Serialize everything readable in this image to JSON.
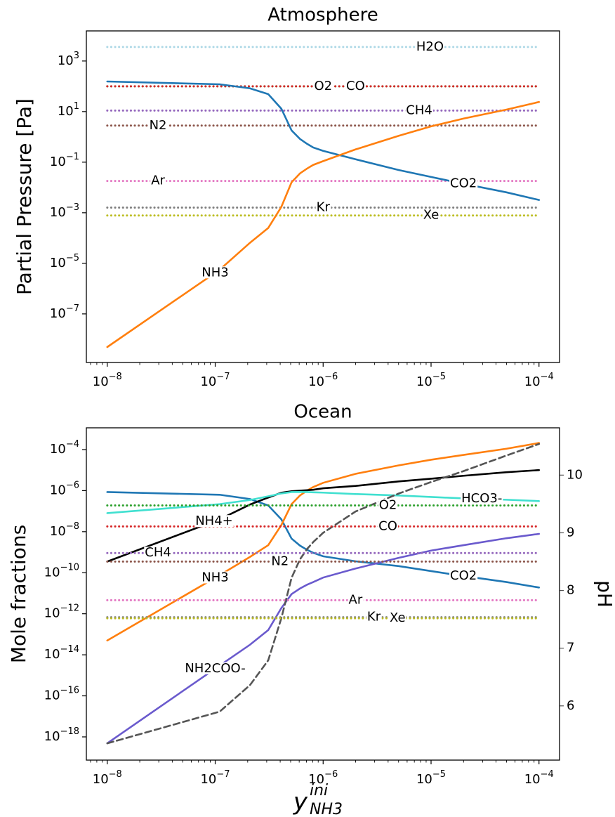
{
  "chart_data": [
    {
      "type": "line",
      "title": "Atmosphere",
      "ylabel": "Partial Pressure [Pa]",
      "xscale": "log",
      "yscale": "log",
      "x": [
        1e-08,
        1.1e-07,
        2.1e-07,
        3.1e-07,
        4.1e-07,
        5.1e-07,
        6.1e-07,
        7.1e-07,
        8.1e-07,
        1e-06,
        2e-06,
        5e-06,
        1e-05,
        2e-05,
        5e-05,
        0.0001
      ],
      "xlim": [
        6.4e-09,
        0.000155
      ],
      "ylim": [
        1.2e-09,
        15500.0
      ],
      "xticks": [
        {
          "value": 1e-08,
          "label": {
            "base": "10",
            "exp": "−8"
          }
        },
        {
          "value": 1e-07,
          "label": {
            "base": "10",
            "exp": "−7"
          }
        },
        {
          "value": 1e-06,
          "label": {
            "base": "10",
            "exp": "−6"
          }
        },
        {
          "value": 1e-05,
          "label": {
            "base": "10",
            "exp": "−5"
          }
        },
        {
          "value": 0.0001,
          "label": {
            "base": "10",
            "exp": "−4"
          }
        }
      ],
      "xminorticks": [
        7e-09,
        8e-09,
        9e-09,
        2e-08,
        3e-08,
        4e-08,
        5e-08,
        6e-08,
        7e-08,
        8e-08,
        9e-08,
        2e-07,
        3e-07,
        4e-07,
        5e-07,
        6e-07,
        7e-07,
        8e-07,
        9e-07,
        2e-06,
        3e-06,
        4e-06,
        5e-06,
        6e-06,
        7e-06,
        8e-06,
        9e-06,
        2e-05,
        3e-05,
        4e-05,
        5e-05,
        6e-05,
        7e-05,
        8e-05,
        9e-05
      ],
      "yticks": [
        {
          "value": 1000,
          "label": {
            "base": "10",
            "exp": "3"
          }
        },
        {
          "value": 10,
          "label": {
            "base": "10",
            "exp": "1"
          }
        },
        {
          "value": 0.1,
          "label": {
            "base": "10",
            "exp": "−1"
          }
        },
        {
          "value": 0.001,
          "label": {
            "base": "10",
            "exp": "−3"
          }
        },
        {
          "value": 1e-05,
          "label": {
            "base": "10",
            "exp": "−5"
          }
        },
        {
          "value": 1e-07,
          "label": {
            "base": "10",
            "exp": "−7"
          }
        }
      ],
      "series": [
        {
          "name": "H2O",
          "color": "#add8e6",
          "linestyle": "dotted",
          "x": [
            1e-08,
            0.0001
          ],
          "values": [
            3600,
            3600
          ]
        },
        {
          "name": "O2",
          "color": "#2ca02c",
          "linestyle": "dotted",
          "x": [
            1e-08,
            0.0001
          ],
          "values": [
            100,
            100
          ]
        },
        {
          "name": "CO",
          "color": "#d62728",
          "linestyle": "dotted",
          "x": [
            1e-08,
            0.0001
          ],
          "values": [
            100,
            100
          ]
        },
        {
          "name": "CH4",
          "color": "#9467bd",
          "linestyle": "dotted",
          "x": [
            1e-08,
            0.0001
          ],
          "values": [
            11,
            11
          ]
        },
        {
          "name": "N2",
          "color": "#8c564b",
          "linestyle": "dotted",
          "x": [
            1e-08,
            0.0001
          ],
          "values": [
            2.8,
            2.8
          ]
        },
        {
          "name": "Ar",
          "color": "#e377c2",
          "linestyle": "dotted",
          "x": [
            1e-08,
            0.0001
          ],
          "values": [
            0.018,
            0.018
          ]
        },
        {
          "name": "Kr",
          "color": "#7f7f7f",
          "linestyle": "dotted",
          "x": [
            1e-08,
            0.0001
          ],
          "values": [
            0.0016,
            0.0016
          ]
        },
        {
          "name": "Xe",
          "color": "#bcbd22",
          "linestyle": "dotted",
          "x": [
            1e-08,
            0.0001
          ],
          "values": [
            0.00078,
            0.00078
          ]
        },
        {
          "name": "CO2",
          "color": "#1f77b4",
          "linestyle": "solid",
          "values": [
            155,
            120,
            83,
            49,
            13,
            1.8,
            0.83,
            0.53,
            0.38,
            0.28,
            0.13,
            0.049,
            0.026,
            0.014,
            0.0064,
            0.0032
          ]
        },
        {
          "name": "NH3",
          "color": "#ff7f0e",
          "linestyle": "solid",
          "values": [
            4.9e-09,
            5.6e-06,
            6.5e-05,
            0.00025,
            0.0017,
            0.016,
            0.036,
            0.056,
            0.078,
            0.11,
            0.32,
            1.1,
            2.6,
            5.3,
            12,
            24
          ]
        }
      ]
    },
    {
      "type": "line",
      "title": "Ocean",
      "ylabel": "Mole fractions",
      "y2label": "pH",
      "xscale": "log",
      "yscale": "log",
      "xlabel": {
        "base": "y",
        "sup": "ini",
        "sub": "NH3"
      },
      "x": [
        1e-08,
        1.1e-07,
        2.1e-07,
        3.1e-07,
        4.1e-07,
        5.1e-07,
        6.1e-07,
        7.1e-07,
        8.1e-07,
        1e-06,
        2e-06,
        5e-06,
        1e-05,
        2e-05,
        5e-05,
        0.0001
      ],
      "xlim": [
        6.4e-09,
        0.000155
      ],
      "ylim": [
        7.4e-20,
        0.00115
      ],
      "y2lim": [
        5.06,
        10.82
      ],
      "xticks": [
        {
          "value": 1e-08,
          "label": {
            "base": "10",
            "exp": "−8"
          }
        },
        {
          "value": 1e-07,
          "label": {
            "base": "10",
            "exp": "−7"
          }
        },
        {
          "value": 1e-06,
          "label": {
            "base": "10",
            "exp": "−6"
          }
        },
        {
          "value": 1e-05,
          "label": {
            "base": "10",
            "exp": "−5"
          }
        },
        {
          "value": 0.0001,
          "label": {
            "base": "10",
            "exp": "−4"
          }
        }
      ],
      "xminorticks": [
        7e-09,
        8e-09,
        9e-09,
        2e-08,
        3e-08,
        4e-08,
        5e-08,
        6e-08,
        7e-08,
        8e-08,
        9e-08,
        2e-07,
        3e-07,
        4e-07,
        5e-07,
        6e-07,
        7e-07,
        8e-07,
        9e-07,
        2e-06,
        3e-06,
        4e-06,
        5e-06,
        6e-06,
        7e-06,
        8e-06,
        9e-06,
        2e-05,
        3e-05,
        4e-05,
        5e-05,
        6e-05,
        7e-05,
        8e-05,
        9e-05
      ],
      "yticks": [
        {
          "value": 0.0001,
          "label": {
            "base": "10",
            "exp": "−4"
          }
        },
        {
          "value": 1e-06,
          "label": {
            "base": "10",
            "exp": "−6"
          }
        },
        {
          "value": 1e-08,
          "label": {
            "base": "10",
            "exp": "−8"
          }
        },
        {
          "value": 1e-10,
          "label": {
            "base": "10",
            "exp": "−10"
          }
        },
        {
          "value": 1e-12,
          "label": {
            "base": "10",
            "exp": "−12"
          }
        },
        {
          "value": 1e-14,
          "label": {
            "base": "10",
            "exp": "−14"
          }
        },
        {
          "value": 1e-16,
          "label": {
            "base": "10",
            "exp": "−16"
          }
        },
        {
          "value": 1e-18,
          "label": {
            "base": "10",
            "exp": "−18"
          }
        }
      ],
      "y2ticks": [
        6,
        7,
        8,
        9,
        10
      ],
      "series": [
        {
          "name": "CO2",
          "color": "#1f77b4",
          "linestyle": "solid",
          "values": [
            8.5e-07,
            6.3e-07,
            3.9e-07,
            1.9e-07,
            4e-08,
            4.6e-09,
            2.1e-09,
            1.3e-09,
            9.3e-10,
            6.3e-10,
            3.6e-10,
            2.1e-10,
            1.2e-10,
            6.9e-11,
            3.5e-11,
            1.9e-11
          ]
        },
        {
          "name": "NH3",
          "color": "#ff7f0e",
          "linestyle": "solid",
          "values": [
            5e-14,
            7.6e-11,
            5.9e-10,
            2.2e-09,
            2.1e-08,
            2.2e-07,
            5.8e-07,
            1e-06,
            1.5e-06,
            2.4e-06,
            6.6e-06,
            1.7e-05,
            3.2e-05,
            5.5e-05,
            0.00011,
            0.00021
          ]
        },
        {
          "name": "NH4+",
          "color": "#000000",
          "linestyle": "solid",
          "values": [
            3.5e-10,
            4e-08,
            2.1e-07,
            4.6e-07,
            7.9e-07,
            9.3e-07,
            1e-06,
            1.05e-06,
            1.1e-06,
            1.3e-06,
            1.7e-06,
            2.8e-06,
            3.8e-06,
            5.3e-06,
            7.9e-06,
            1e-05
          ]
        },
        {
          "name": "HCO3-",
          "color": "#40e0d0",
          "linestyle": "solid",
          "values": [
            8e-08,
            2.2e-07,
            3.5e-07,
            5.3e-07,
            7.3e-07,
            8.5e-07,
            8.6e-07,
            8.5e-07,
            8.3e-07,
            8e-07,
            6.8e-07,
            5.8e-07,
            4.9e-07,
            4.2e-07,
            3.6e-07,
            3.1e-07
          ]
        },
        {
          "name": "NH2COO-",
          "color": "#6a5acd",
          "linestyle": "solid",
          "values": [
            4.9e-19,
            3e-15,
            3.1e-14,
            1.6e-13,
            1.9e-12,
            9.1e-12,
            1.7e-11,
            2.6e-11,
            3.5e-11,
            5.8e-11,
            1.6e-10,
            5.3e-10,
            1.2e-09,
            2.2e-09,
            4.8e-09,
            7.8e-09
          ]
        },
        {
          "color": "#555555",
          "linestyle": "dashed",
          "axis": "y2",
          "values": [
            5.35,
            5.9,
            6.36,
            6.79,
            7.52,
            8.22,
            8.54,
            8.72,
            8.84,
            9.0,
            9.37,
            9.68,
            9.88,
            10.07,
            10.34,
            10.54
          ]
        },
        {
          "name": "O2",
          "color": "#2ca02c",
          "linestyle": "dotted",
          "x": [
            1e-08,
            0.0001
          ],
          "values": [
            1.9e-07,
            1.9e-07
          ]
        },
        {
          "name": "CO",
          "color": "#d62728",
          "linestyle": "dotted",
          "x": [
            1e-08,
            0.0001
          ],
          "values": [
            1.8e-08,
            1.8e-08
          ]
        },
        {
          "name": "CH4",
          "color": "#9467bd",
          "linestyle": "dotted",
          "x": [
            1e-08,
            0.0001
          ],
          "values": [
            9.1e-10,
            9.1e-10
          ]
        },
        {
          "name": "N2",
          "color": "#8c564b",
          "linestyle": "dotted",
          "x": [
            1e-08,
            0.0001
          ],
          "values": [
            3.5e-10,
            3.5e-10
          ]
        },
        {
          "name": "Ar",
          "color": "#e377c2",
          "linestyle": "dotted",
          "x": [
            1e-08,
            0.0001
          ],
          "values": [
            4.6e-12,
            4.6e-12
          ]
        },
        {
          "name": "Kr",
          "color": "#7f7f7f",
          "linestyle": "dotted",
          "x": [
            1e-08,
            0.0001
          ],
          "values": [
            6.8e-13,
            6.8e-13
          ]
        },
        {
          "name": "Xe",
          "color": "#bcbd22",
          "linestyle": "dotted",
          "x": [
            1e-08,
            0.0001
          ],
          "values": [
            6e-13,
            6e-13
          ]
        }
      ]
    }
  ]
}
